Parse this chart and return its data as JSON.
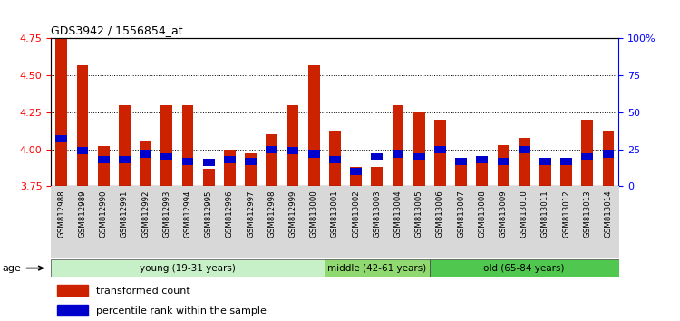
{
  "title": "GDS3942 / 1556854_at",
  "samples": [
    "GSM812988",
    "GSM812989",
    "GSM812990",
    "GSM812991",
    "GSM812992",
    "GSM812993",
    "GSM812994",
    "GSM812995",
    "GSM812996",
    "GSM812997",
    "GSM812998",
    "GSM812999",
    "GSM813000",
    "GSM813001",
    "GSM813002",
    "GSM813003",
    "GSM813004",
    "GSM813005",
    "GSM813006",
    "GSM813007",
    "GSM813008",
    "GSM813009",
    "GSM813010",
    "GSM813011",
    "GSM813012",
    "GSM813013",
    "GSM813014"
  ],
  "transformed_count": [
    4.75,
    4.57,
    4.02,
    4.3,
    4.05,
    4.3,
    4.3,
    3.87,
    4.0,
    3.97,
    4.1,
    4.3,
    4.57,
    4.12,
    3.88,
    3.88,
    4.3,
    4.25,
    4.2,
    3.93,
    3.93,
    4.03,
    4.08,
    3.93,
    3.93,
    4.2,
    4.12
  ],
  "percentile_rank": [
    32,
    24,
    18,
    18,
    22,
    20,
    17,
    16,
    18,
    17,
    25,
    24,
    22,
    18,
    10,
    20,
    22,
    20,
    25,
    17,
    18,
    17,
    25,
    17,
    17,
    20,
    22
  ],
  "groups": [
    {
      "label": "young (19-31 years)",
      "start": 0,
      "end": 13,
      "color": "#c8f0c8"
    },
    {
      "label": "middle (42-61 years)",
      "start": 13,
      "end": 18,
      "color": "#90d870"
    },
    {
      "label": "old (65-84 years)",
      "start": 18,
      "end": 27,
      "color": "#50c850"
    }
  ],
  "ylim_left": [
    3.75,
    4.75
  ],
  "ylim_right": [
    0,
    100
  ],
  "yticks_left": [
    3.75,
    4.0,
    4.25,
    4.5,
    4.75
  ],
  "yticks_right": [
    0,
    25,
    50,
    75,
    100
  ],
  "bar_color": "#cc2200",
  "percentile_color": "#0000cc",
  "background_color": "#ffffff",
  "age_label": "age",
  "legend_items": [
    "transformed count",
    "percentile rank within the sample"
  ]
}
